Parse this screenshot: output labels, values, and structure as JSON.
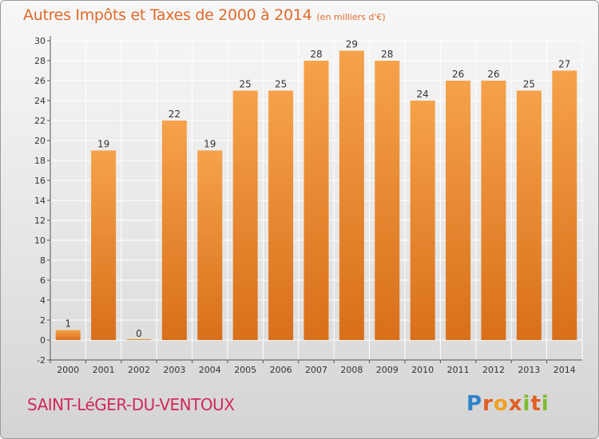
{
  "title": "Autres Impôts et Taxes de 2000 à 2014",
  "unit_note": "(en milliers d'€)",
  "commune": "SAINT-LéGER-DU-VENTOUX",
  "logo": {
    "letters": [
      "P",
      "r",
      "o",
      "x",
      "i",
      "t",
      "i"
    ],
    "colors": [
      "#2f82c9",
      "#e05e22",
      "#f0a020",
      "#7dbb2d"
    ]
  },
  "colors": {
    "bar_top": "#f5a24a",
    "bar_bottom": "#d96f1a",
    "axis": "#555555",
    "grid": "#ffffff",
    "text": "#333333"
  },
  "chart_data": {
    "type": "bar",
    "categories": [
      "2000",
      "2001",
      "2002",
      "2003",
      "2004",
      "2005",
      "2006",
      "2007",
      "2008",
      "2009",
      "2010",
      "2011",
      "2012",
      "2013",
      "2014"
    ],
    "values": [
      1,
      19,
      0,
      22,
      19,
      25,
      25,
      28,
      29,
      28,
      24,
      26,
      26,
      25,
      27
    ],
    "ylim": [
      -2,
      30
    ],
    "yticks": [
      -2,
      0,
      2,
      4,
      6,
      8,
      10,
      12,
      14,
      16,
      18,
      20,
      22,
      24,
      26,
      28,
      30
    ],
    "xlabel": "",
    "ylabel": "",
    "grid": true
  }
}
